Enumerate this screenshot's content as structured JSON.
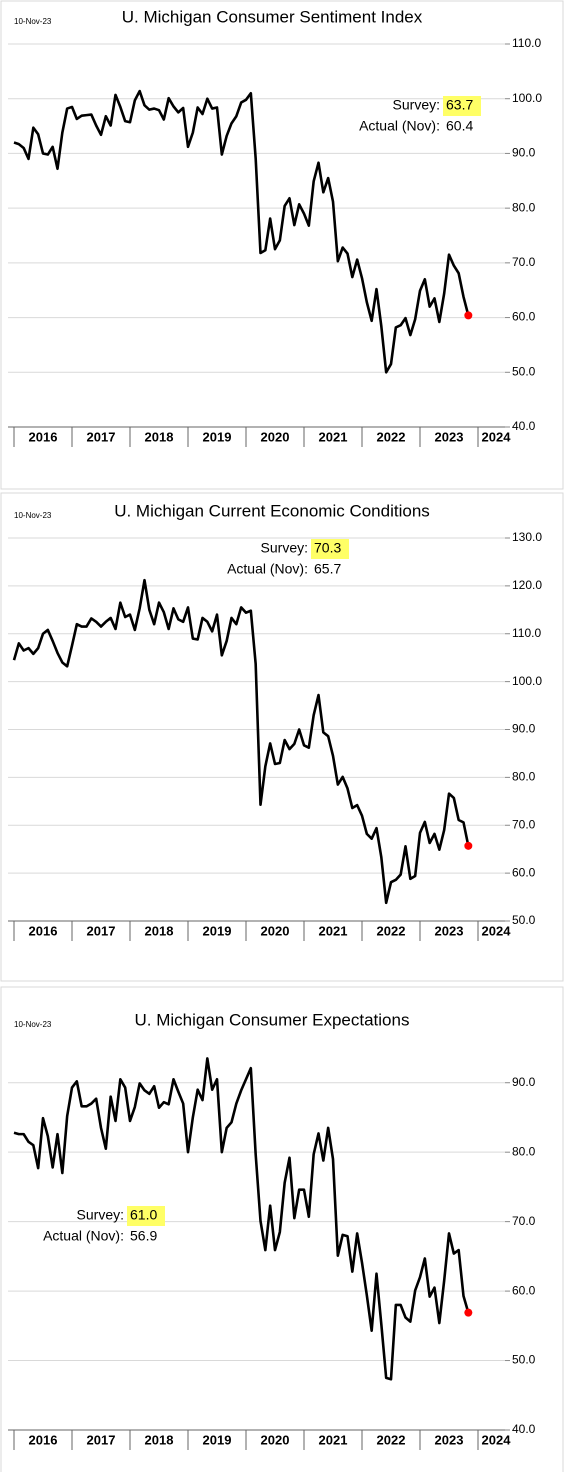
{
  "chart_data": [
    {
      "type": "line",
      "title": "U. Michigan Consumer Sentiment Index",
      "date": "10-Nov-23",
      "xticklabels": [
        "2016",
        "2017",
        "2018",
        "2019",
        "2020",
        "2021",
        "2022",
        "2023",
        "2024"
      ],
      "ylim": [
        40,
        110
      ],
      "yticks": [
        {
          "value": 40,
          "label": "40.0"
        },
        {
          "value": 50,
          "label": "50.0"
        },
        {
          "value": 60,
          "label": "60.0"
        },
        {
          "value": 70,
          "label": "70.0"
        },
        {
          "value": 80,
          "label": "80.0"
        },
        {
          "value": 90,
          "label": "90.0"
        },
        {
          "value": 100,
          "label": "100.0"
        },
        {
          "value": 110,
          "label": "110.0"
        }
      ],
      "grid": true,
      "end_marker_color": "#ff0000",
      "annotation": {
        "survey_label": "Survey:",
        "survey": {
          "value": 63.7,
          "label": "63.7"
        },
        "actual_label": "Actual (Nov):",
        "actual": {
          "value": 60.4,
          "label": "60.4"
        },
        "highlight": "#ffff66"
      },
      "series": [
        {
          "name": "Consumer Sentiment",
          "color": "#000000",
          "values": [
            92.0,
            91.7,
            91.0,
            89.0,
            94.7,
            93.5,
            90.0,
            89.8,
            91.2,
            87.2,
            93.8,
            98.2,
            98.5,
            96.3,
            96.9,
            97.0,
            97.1,
            95.1,
            93.4,
            96.8,
            95.1,
            100.7,
            98.5,
            95.9,
            95.7,
            99.7,
            101.4,
            98.8,
            98.0,
            98.2,
            97.9,
            96.2,
            100.1,
            98.6,
            97.5,
            98.3,
            91.2,
            93.8,
            98.4,
            97.2,
            100.0,
            98.2,
            98.4,
            89.8,
            93.2,
            95.5,
            96.8,
            99.3,
            99.8,
            101.0,
            89.1,
            71.8,
            72.3,
            78.1,
            72.5,
            74.1,
            80.4,
            81.8,
            76.9,
            80.7,
            79.0,
            76.8,
            84.9,
            88.3,
            82.9,
            85.5,
            81.2,
            70.3,
            72.8,
            71.7,
            67.4,
            70.6,
            67.2,
            62.8,
            59.4,
            65.2,
            58.4,
            50.0,
            51.5,
            58.2,
            58.6,
            59.9,
            56.8,
            59.7,
            64.9,
            67.0,
            62.0,
            63.5,
            59.2,
            64.4,
            71.5,
            69.5,
            68.1,
            63.8,
            60.4
          ]
        }
      ]
    },
    {
      "type": "line",
      "title": "U. Michigan Current Economic Conditions",
      "date": "10-Nov-23",
      "xticklabels": [
        "2016",
        "2017",
        "2018",
        "2019",
        "2020",
        "2021",
        "2022",
        "2023",
        "2024"
      ],
      "ylim": [
        50,
        130
      ],
      "yticks": [
        {
          "value": 50,
          "label": "50.0"
        },
        {
          "value": 60,
          "label": "60.0"
        },
        {
          "value": 70,
          "label": "70.0"
        },
        {
          "value": 80,
          "label": "80.0"
        },
        {
          "value": 90,
          "label": "90.0"
        },
        {
          "value": 100,
          "label": "100.0"
        },
        {
          "value": 110,
          "label": "110.0"
        },
        {
          "value": 120,
          "label": "120.0"
        },
        {
          "value": 130,
          "label": "130.0"
        }
      ],
      "grid": true,
      "end_marker_color": "#ff0000",
      "annotation": {
        "survey_label": "Survey:",
        "survey": {
          "value": 70.3,
          "label": "70.3"
        },
        "actual_label": "Actual (Nov):",
        "actual": {
          "value": 65.7,
          "label": "65.7"
        },
        "highlight": "#ffff66"
      },
      "series": [
        {
          "name": "Current Conditions",
          "color": "#000000",
          "values": [
            104.5,
            108.0,
            106.5,
            107.0,
            105.8,
            107.0,
            110.0,
            110.8,
            108.5,
            106.0,
            104.0,
            103.2,
            107.5,
            112.0,
            111.5,
            111.5,
            113.2,
            112.5,
            111.5,
            112.5,
            113.3,
            111.0,
            116.5,
            113.5,
            114.0,
            110.8,
            115.3,
            121.2,
            115.0,
            112.0,
            116.5,
            114.5,
            111.0,
            115.3,
            113.0,
            112.5,
            115.5,
            109.0,
            108.8,
            113.3,
            112.5,
            110.5,
            114.0,
            105.5,
            108.5,
            113.3,
            112.0,
            115.5,
            114.4,
            114.8,
            103.7,
            74.3,
            82.3,
            87.1,
            82.8,
            83.0,
            87.8,
            85.9,
            87.0,
            90.0,
            86.7,
            86.2,
            93.0,
            97.2,
            89.4,
            88.6,
            84.5,
            78.5,
            80.1,
            77.7,
            73.6,
            74.2,
            72.0,
            68.2,
            67.2,
            69.4,
            63.3,
            53.8,
            58.1,
            58.6,
            59.7,
            65.6,
            58.8,
            59.4,
            68.4,
            70.7,
            66.3,
            68.2,
            64.9,
            69.0,
            76.6,
            75.7,
            71.1,
            70.6,
            65.7
          ]
        }
      ]
    },
    {
      "type": "line",
      "title": "U. Michigan Consumer Expectations",
      "date": "10-Nov-23",
      "xticklabels": [
        "2016",
        "2017",
        "2018",
        "2019",
        "2020",
        "2021",
        "2022",
        "2023",
        "2024"
      ],
      "ylim": [
        40,
        95
      ],
      "yticks": [
        {
          "value": 40,
          "label": "40.0"
        },
        {
          "value": 50,
          "label": "50.0"
        },
        {
          "value": 60,
          "label": "60.0"
        },
        {
          "value": 70,
          "label": "70.0"
        },
        {
          "value": 80,
          "label": "80.0"
        },
        {
          "value": 90,
          "label": "90.0"
        }
      ],
      "grid": true,
      "end_marker_color": "#ff0000",
      "annotation": {
        "survey_label": "Survey:",
        "survey": {
          "value": 61,
          "label": "61.0"
        },
        "actual_label": "Actual (Nov):",
        "actual": {
          "value": 56.9,
          "label": "56.9"
        },
        "highlight": "#ffff66"
      },
      "series": [
        {
          "name": "Consumer Expectations",
          "color": "#000000",
          "values": [
            82.8,
            82.6,
            82.6,
            81.5,
            81.0,
            77.7,
            84.9,
            82.3,
            77.8,
            82.6,
            77.0,
            85.2,
            89.3,
            90.2,
            86.6,
            86.6,
            87.0,
            87.7,
            83.5,
            80.5,
            88.0,
            84.5,
            90.5,
            89.3,
            84.5,
            86.5,
            89.9,
            88.9,
            88.4,
            89.5,
            86.4,
            87.2,
            86.9,
            90.5,
            88.7,
            87.0,
            80.0,
            85.0,
            89.0,
            87.5,
            93.5,
            89.0,
            90.5,
            80.0,
            83.5,
            84.3,
            87.0,
            88.9,
            90.5,
            92.1,
            79.7,
            70.1,
            65.9,
            72.3,
            65.9,
            68.5,
            75.6,
            79.2,
            70.5,
            74.6,
            74.6,
            70.7,
            79.7,
            82.7,
            78.8,
            83.5,
            79.0,
            65.1,
            68.1,
            67.9,
            62.8,
            68.3,
            64.1,
            59.4,
            54.3,
            62.5,
            55.2,
            47.5,
            47.3,
            58.0,
            58.0,
            56.2,
            55.6,
            60.1,
            62.0,
            64.7,
            59.2,
            60.5,
            55.4,
            61.5,
            68.3,
            65.4,
            65.9,
            59.3,
            56.9
          ]
        }
      ]
    }
  ]
}
